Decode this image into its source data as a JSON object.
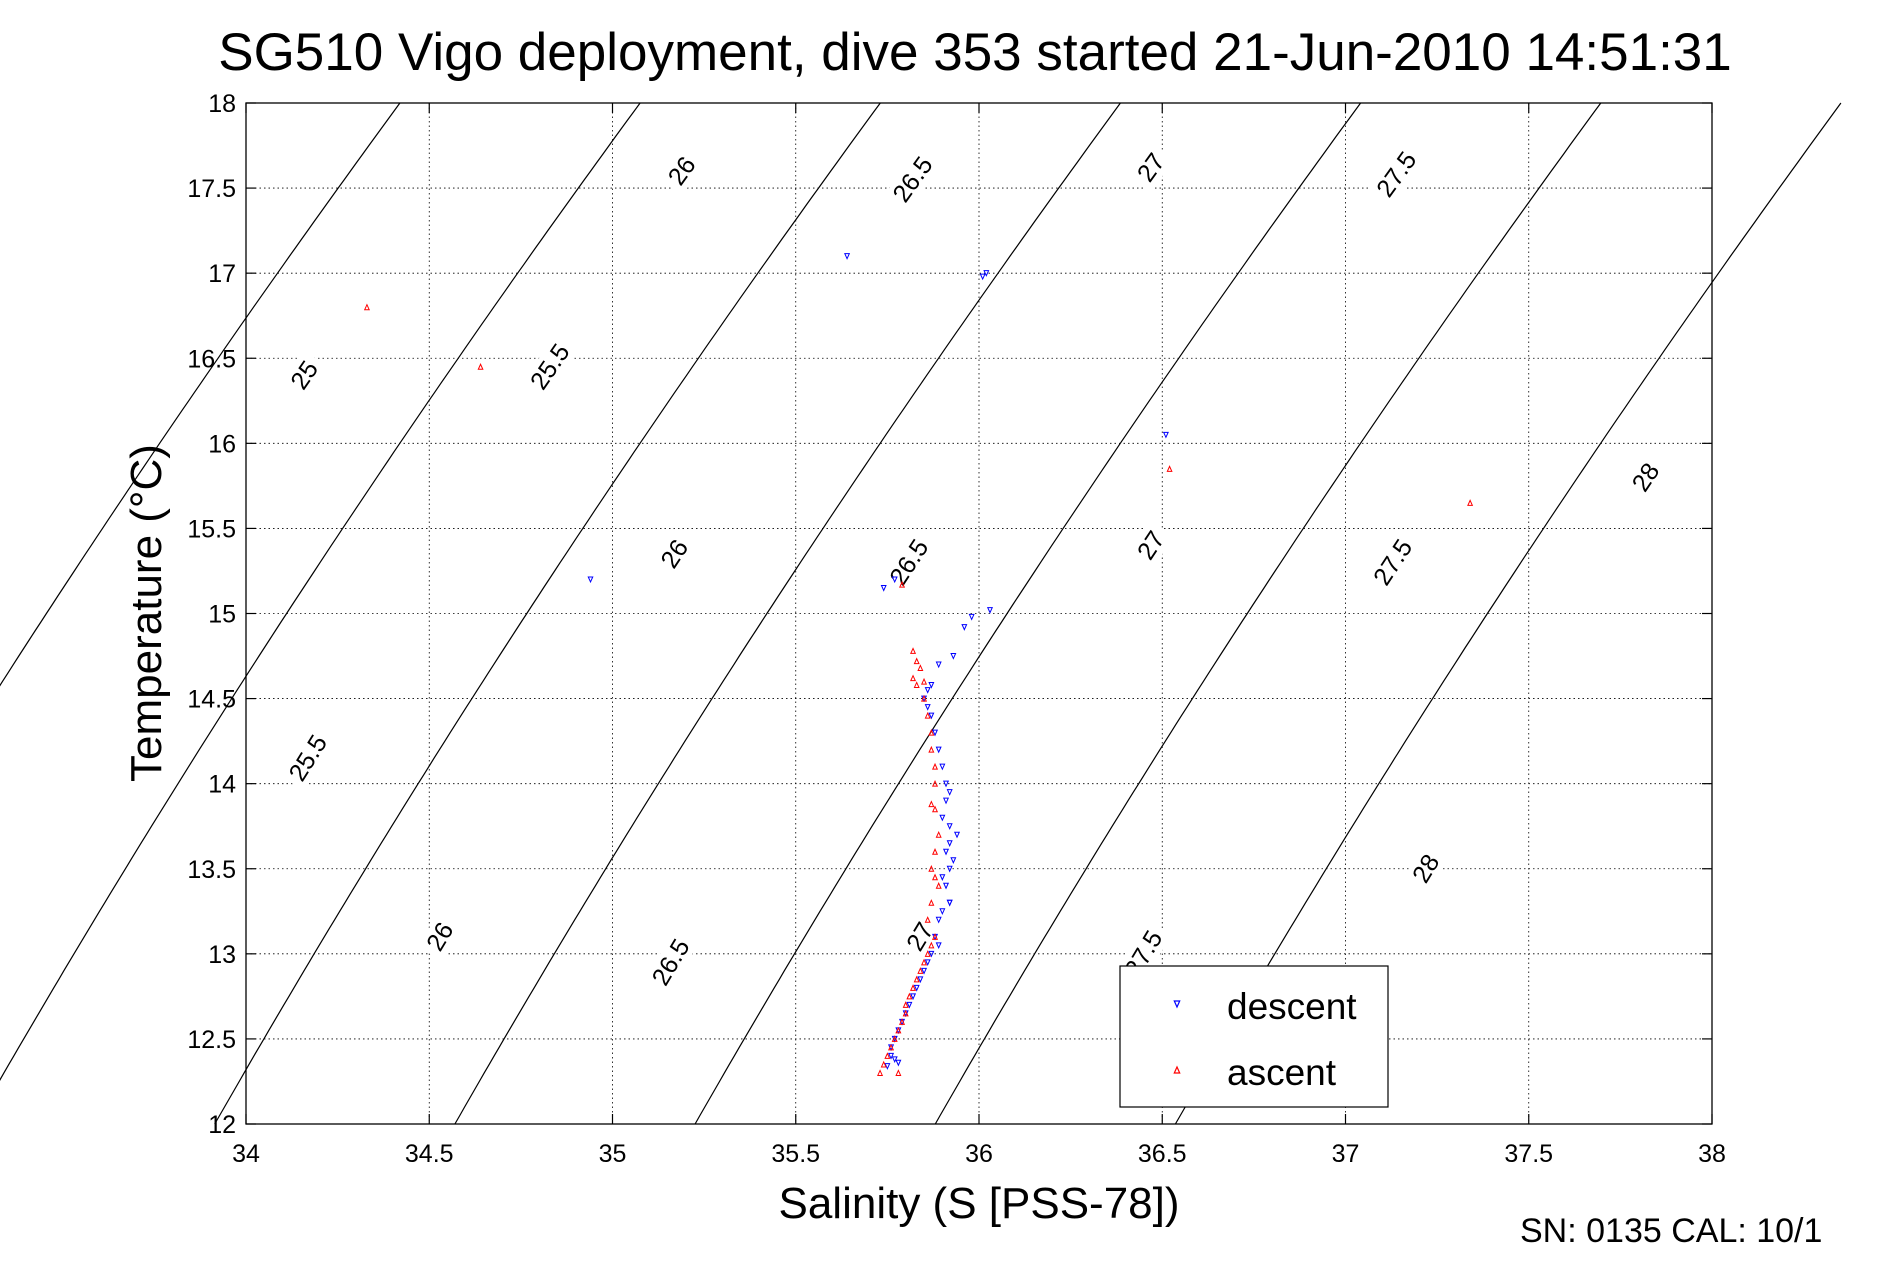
{
  "chart_data": {
    "type": "scatter",
    "title": "SG510 Vigo deployment, dive 353 started 21-Jun-2010 14:51:31",
    "xlabel": "Salinity (S [PSS-78])",
    "ylabel": "Temperature (°C)",
    "xlim": [
      34,
      38
    ],
    "ylim": [
      12,
      18
    ],
    "xticks": [
      34,
      34.5,
      35,
      35.5,
      36,
      36.5,
      37,
      37.5,
      38
    ],
    "yticks": [
      12,
      12.5,
      13,
      13.5,
      14,
      14.5,
      15,
      15.5,
      16,
      16.5,
      17,
      17.5,
      18
    ],
    "xtick_labels": [
      "34",
      "34.5",
      "35",
      "35.5",
      "36",
      "36.5",
      "37",
      "37.5",
      "38"
    ],
    "ytick_labels": [
      "12",
      "12.5",
      "13",
      "13.5",
      "14",
      "14.5",
      "15",
      "15.5",
      "16",
      "16.5",
      "17",
      "17.5",
      "18"
    ],
    "grid": true,
    "legend_position": "bottom-right",
    "isopycnals": [
      {
        "level": 25,
        "labels": [
          {
            "text": "25",
            "s": 34.16,
            "t": 16.4
          }
        ]
      },
      {
        "level": 25.5,
        "labels": [
          {
            "text": "25.5",
            "s": 34.83,
            "t": 16.45
          },
          {
            "text": "25.5",
            "s": 34.17,
            "t": 14.15
          }
        ]
      },
      {
        "level": 26,
        "labels": [
          {
            "text": "26",
            "s": 35.19,
            "t": 17.6
          },
          {
            "text": "26",
            "s": 35.17,
            "t": 15.35
          },
          {
            "text": "26",
            "s": 34.53,
            "t": 13.1
          }
        ]
      },
      {
        "level": 26.5,
        "labels": [
          {
            "text": "26.5",
            "s": 35.82,
            "t": 17.55
          },
          {
            "text": "26.5",
            "s": 35.81,
            "t": 15.3
          },
          {
            "text": "26.5",
            "s": 35.16,
            "t": 12.95
          }
        ]
      },
      {
        "level": 27,
        "labels": [
          {
            "text": "27",
            "s": 36.47,
            "t": 17.62
          },
          {
            "text": "27",
            "s": 36.47,
            "t": 15.4
          },
          {
            "text": "27",
            "s": 35.84,
            "t": 13.1
          }
        ]
      },
      {
        "level": 27.5,
        "labels": [
          {
            "text": "27.5",
            "s": 37.14,
            "t": 17.58
          },
          {
            "text": "27.5",
            "s": 37.13,
            "t": 15.3
          },
          {
            "text": "27.5",
            "s": 36.45,
            "t": 13.0
          }
        ]
      },
      {
        "level": 28,
        "labels": [
          {
            "text": "28",
            "s": 37.82,
            "t": 15.8
          },
          {
            "text": "28",
            "s": 37.22,
            "t": 13.5
          }
        ]
      }
    ],
    "series": [
      {
        "name": "descent",
        "color": "#0000ff",
        "marker": "triangle-down",
        "s": [
          35.64,
          36.02,
          36.01,
          34.94,
          36.51,
          35.74,
          35.77,
          36.03,
          35.98,
          35.96,
          35.93,
          35.89,
          35.87,
          35.86,
          35.85,
          35.86,
          35.87,
          35.88,
          35.89,
          35.9,
          35.91,
          35.92,
          35.91,
          35.9,
          35.92,
          35.94,
          35.92,
          35.91,
          35.93,
          35.92,
          35.9,
          35.91,
          35.92,
          35.9,
          35.89,
          35.92,
          35.88,
          35.89,
          35.87,
          35.86,
          35.85,
          35.84,
          35.83,
          35.82,
          35.81,
          35.8,
          35.79,
          35.78,
          35.77,
          35.76,
          35.76,
          35.77,
          35.75,
          35.78
        ],
        "t": [
          17.1,
          17.0,
          16.98,
          15.2,
          16.05,
          15.15,
          15.2,
          15.02,
          14.98,
          14.92,
          14.75,
          14.7,
          14.58,
          14.55,
          14.5,
          14.45,
          14.4,
          14.3,
          14.2,
          14.1,
          14.0,
          13.95,
          13.9,
          13.8,
          13.75,
          13.7,
          13.65,
          13.6,
          13.55,
          13.5,
          13.45,
          13.4,
          13.3,
          13.25,
          13.2,
          13.3,
          13.1,
          13.05,
          13.0,
          12.95,
          12.9,
          12.85,
          12.8,
          12.75,
          12.7,
          12.65,
          12.6,
          12.55,
          12.5,
          12.45,
          12.4,
          12.38,
          12.34,
          12.36
        ]
      },
      {
        "name": "ascent",
        "color": "#ff0000",
        "marker": "triangle-up",
        "s": [
          34.33,
          34.64,
          36.52,
          37.34,
          35.79,
          35.82,
          35.83,
          35.84,
          35.85,
          35.82,
          35.83,
          35.85,
          35.86,
          35.87,
          35.87,
          35.88,
          35.88,
          35.87,
          35.88,
          35.89,
          35.88,
          35.87,
          35.88,
          35.89,
          35.87,
          35.86,
          35.88,
          35.87,
          35.86,
          35.85,
          35.84,
          35.83,
          35.82,
          35.81,
          35.8,
          35.8,
          35.79,
          35.78,
          35.77,
          35.76,
          35.75,
          35.73,
          35.74,
          35.78
        ],
        "t": [
          16.8,
          16.45,
          15.85,
          15.65,
          15.17,
          14.78,
          14.72,
          14.68,
          14.6,
          14.62,
          14.58,
          14.5,
          14.4,
          14.3,
          14.2,
          14.1,
          14.0,
          13.88,
          13.85,
          13.7,
          13.6,
          13.5,
          13.45,
          13.4,
          13.3,
          13.2,
          13.1,
          13.05,
          13.0,
          12.95,
          12.9,
          12.85,
          12.8,
          12.75,
          12.7,
          12.65,
          12.6,
          12.55,
          12.5,
          12.45,
          12.4,
          12.3,
          12.35,
          12.3
        ]
      }
    ]
  },
  "footer": {
    "text": "SN: 0135  CAL: 10/1"
  }
}
